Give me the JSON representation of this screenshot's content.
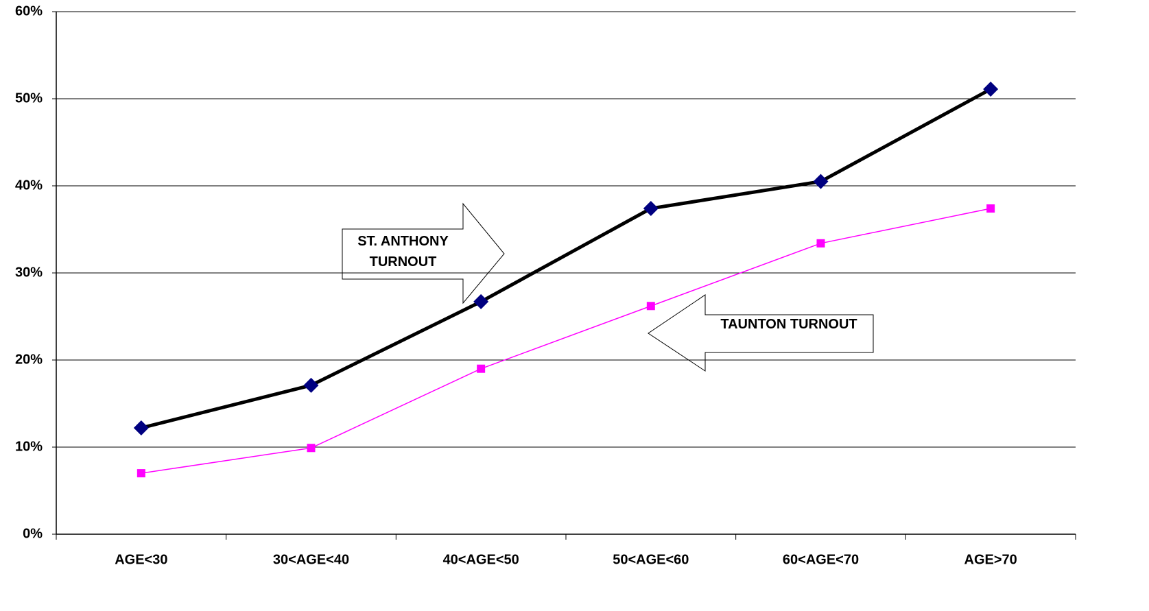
{
  "chart_data": {
    "type": "line",
    "categories": [
      "AGE<30",
      "30<AGE<40",
      "40<AGE<50",
      "50<AGE<60",
      "60<AGE<70",
      "AGE>70"
    ],
    "series": [
      {
        "name": "ST. ANTHONY TURNOUT",
        "color": "#000000",
        "marker_color": "#000080",
        "marker": "diamond",
        "values": [
          12.2,
          17.1,
          26.7,
          37.4,
          40.5,
          51.1
        ]
      },
      {
        "name": "TAUNTON TURNOUT",
        "color": "#ff00ff",
        "marker_color": "#ff00ff",
        "marker": "square",
        "values": [
          7.0,
          9.9,
          19.0,
          26.2,
          33.4,
          37.4
        ]
      }
    ],
    "ylim": [
      0,
      60
    ],
    "yticks": [
      {
        "value": 0,
        "label": "0%"
      },
      {
        "value": 10,
        "label": "10%"
      },
      {
        "value": 20,
        "label": "20%"
      },
      {
        "value": 30,
        "label": "30%"
      },
      {
        "value": 40,
        "label": "40%"
      },
      {
        "value": 50,
        "label": "50%"
      },
      {
        "value": 60,
        "label": "60%"
      }
    ],
    "grid": true
  }
}
